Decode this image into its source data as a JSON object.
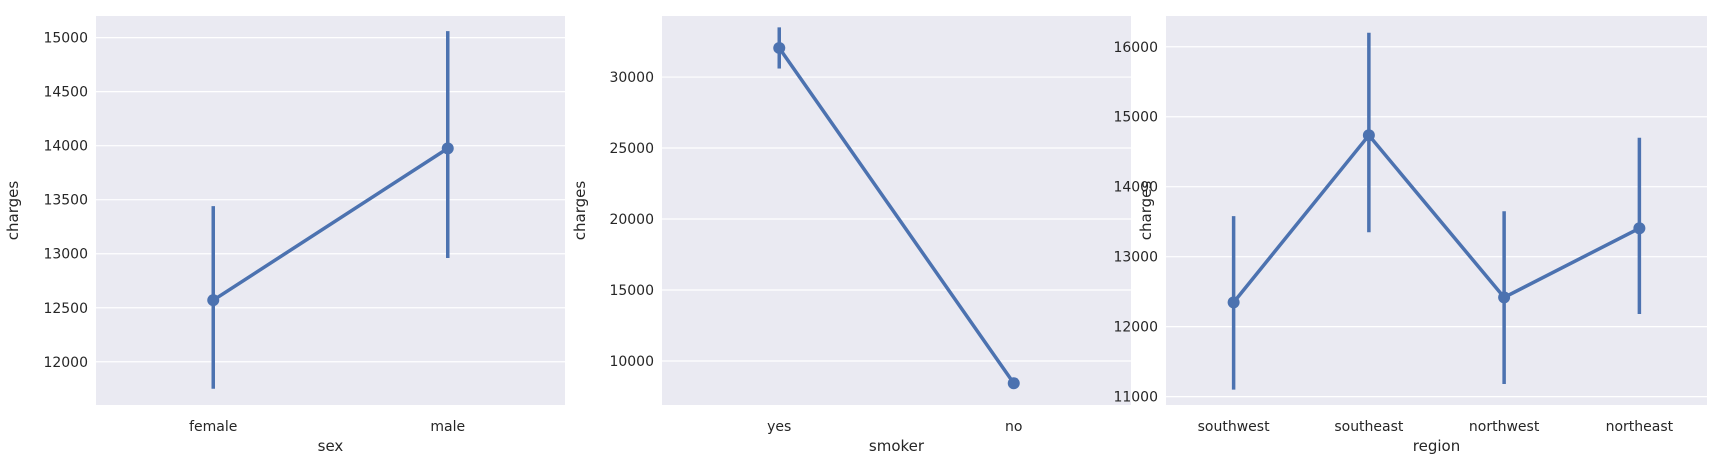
{
  "colors": {
    "series": "#4c72b0",
    "background": "#eaeaf2",
    "grid": "#ffffff"
  },
  "chart_data": [
    {
      "type": "line",
      "subtype": "pointplot",
      "xlabel": "sex",
      "ylabel": "charges",
      "categories": [
        "female",
        "male"
      ],
      "values": [
        12570,
        13975
      ],
      "ci_low": [
        11750,
        12960
      ],
      "ci_high": [
        13440,
        15060
      ],
      "ylim": [
        11600,
        15200
      ],
      "yticks": [
        12000,
        12500,
        13000,
        13500,
        14000,
        14500,
        15000
      ],
      "grid": true
    },
    {
      "type": "line",
      "subtype": "pointplot",
      "xlabel": "smoker",
      "ylabel": "charges",
      "categories": [
        "yes",
        "no"
      ],
      "values": [
        32050,
        8434
      ],
      "ci_low": [
        30600,
        8100
      ],
      "ci_high": [
        33500,
        8800
      ],
      "ylim": [
        6900,
        34300
      ],
      "yticks": [
        10000,
        15000,
        20000,
        25000,
        30000
      ],
      "grid": true
    },
    {
      "type": "line",
      "subtype": "pointplot",
      "xlabel": "region",
      "ylabel": "charges",
      "categories": [
        "southwest",
        "southeast",
        "northwest",
        "northeast"
      ],
      "values": [
        12347,
        14735,
        12418,
        13406
      ],
      "ci_low": [
        11100,
        13350,
        11180,
        12180
      ],
      "ci_high": [
        13580,
        16200,
        13650,
        14700
      ],
      "ylim": [
        10880,
        16440
      ],
      "yticks": [
        11000,
        12000,
        13000,
        14000,
        15000,
        16000
      ],
      "grid": true
    }
  ]
}
